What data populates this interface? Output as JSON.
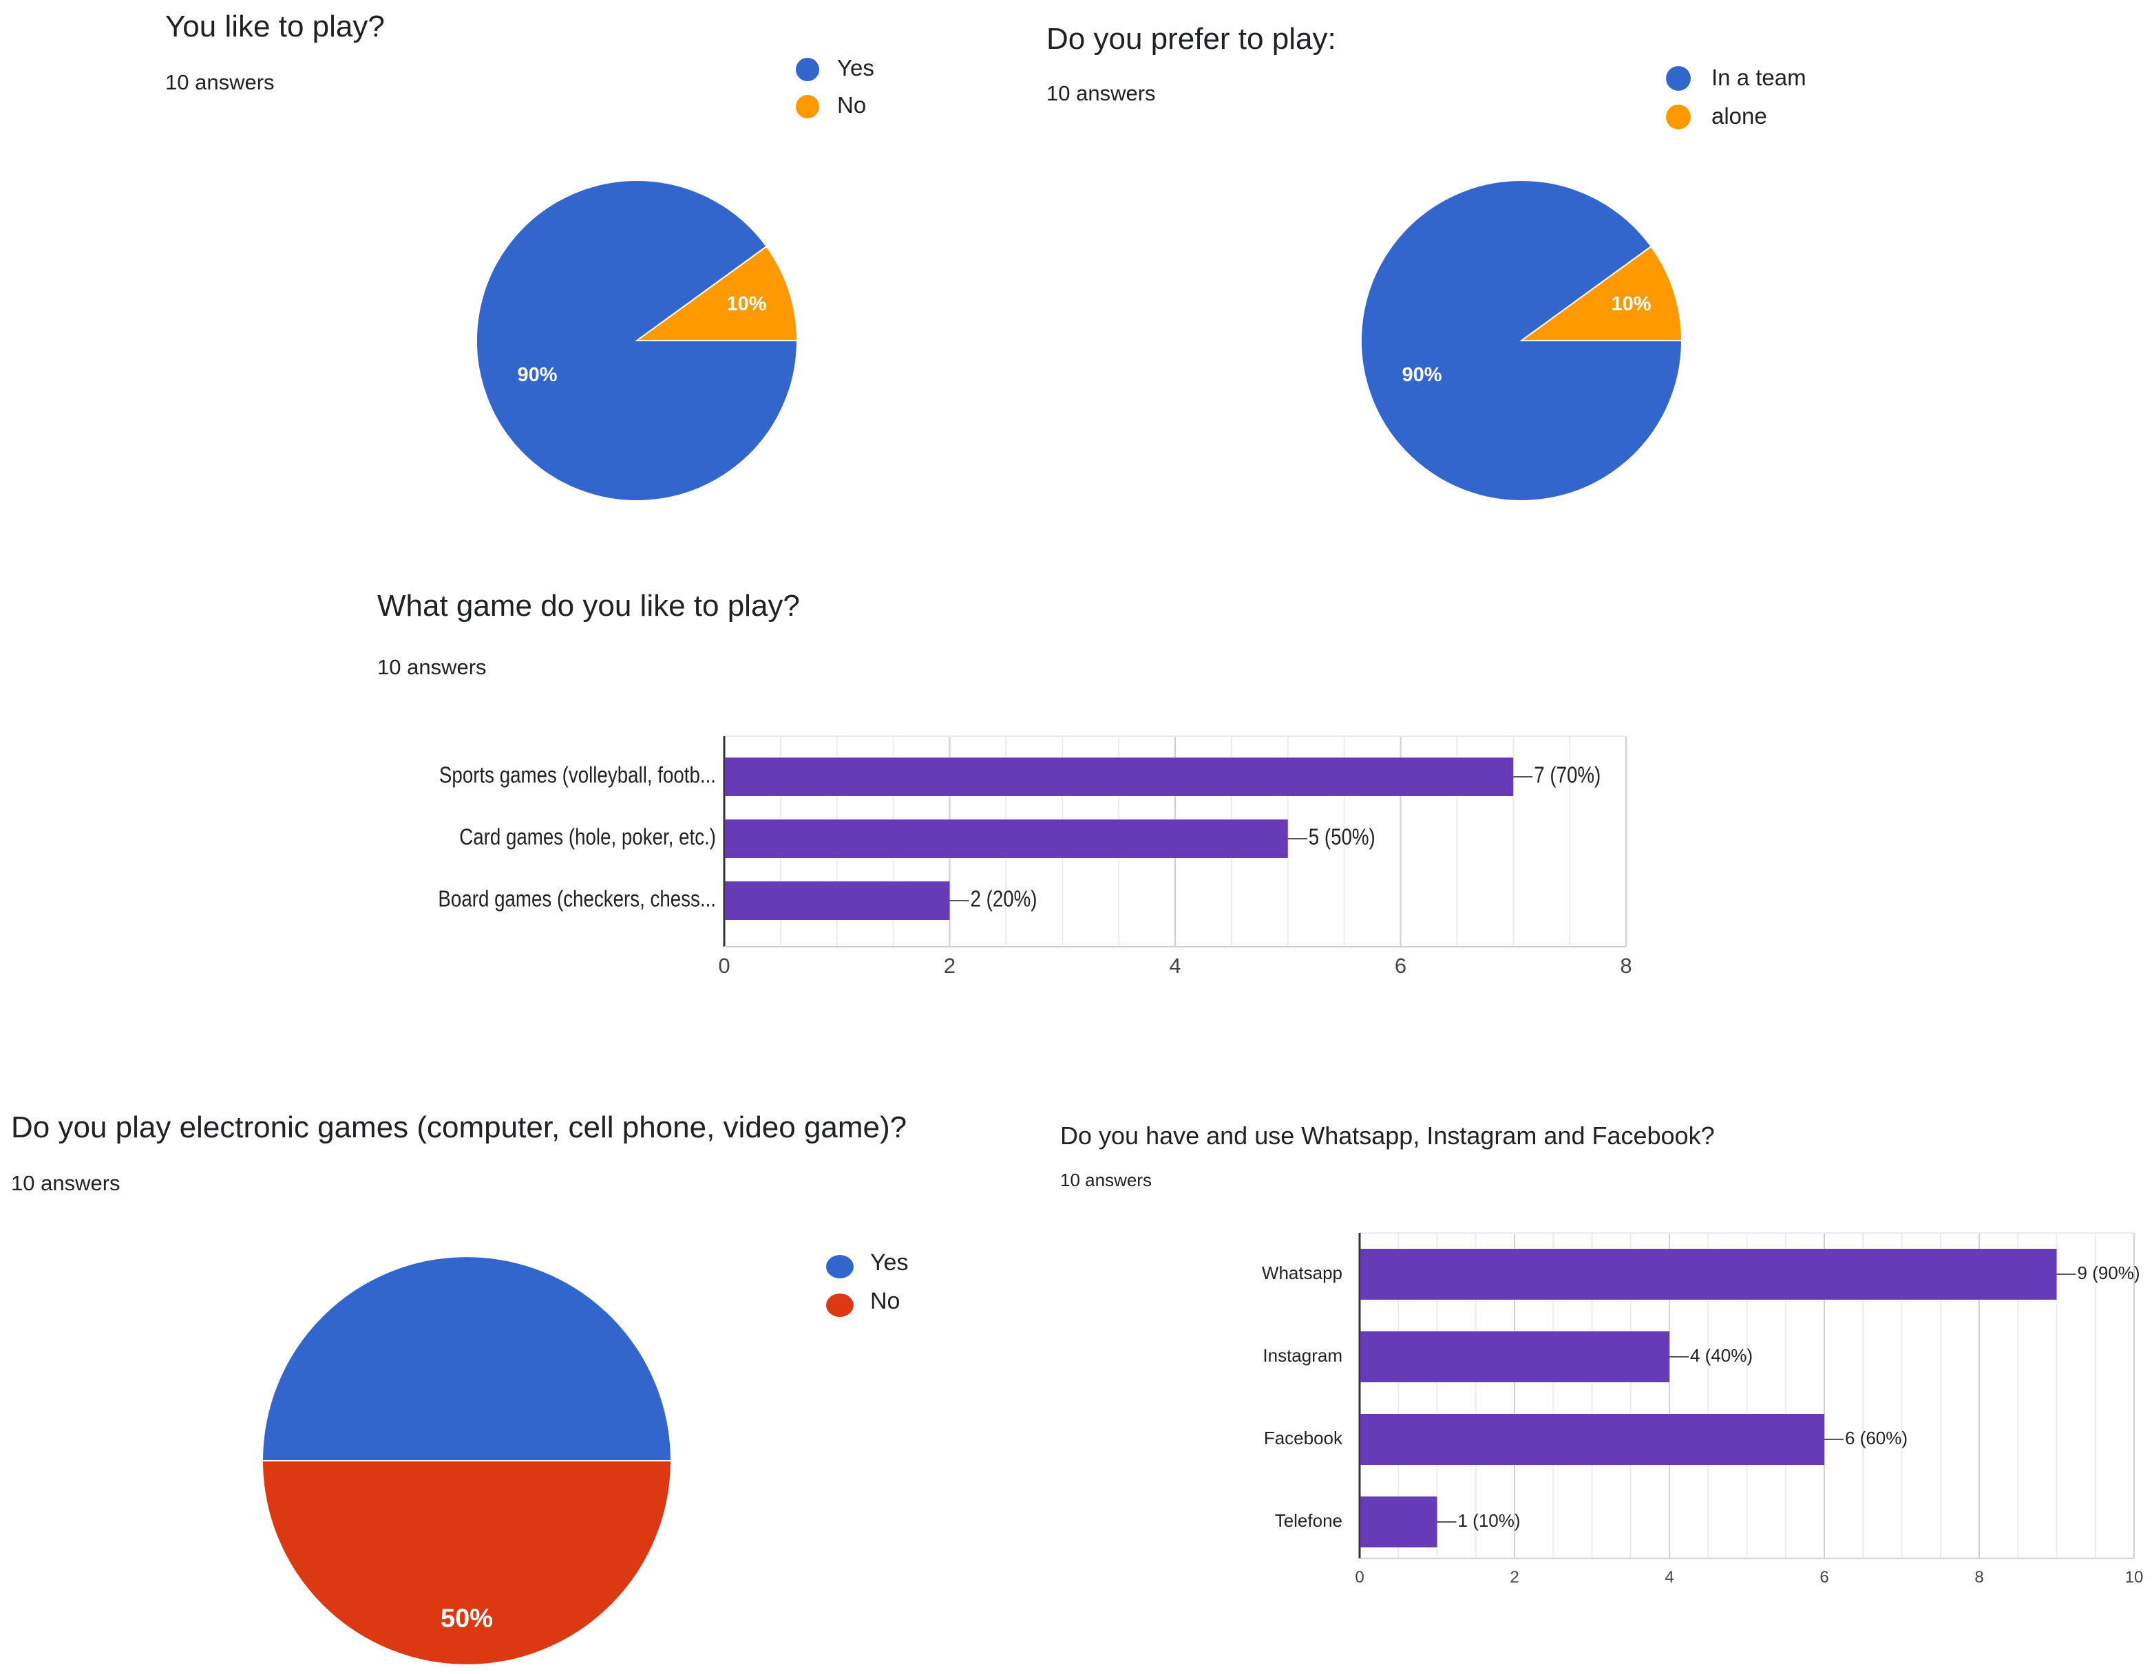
{
  "chart_data": [
    {
      "type": "pie",
      "title": "You like to play?",
      "subtitle": "10 answers",
      "categories": [
        "Yes",
        "No"
      ],
      "values": [
        90,
        10
      ],
      "labels": [
        "90%",
        "10%"
      ],
      "colors": [
        "#3366cc",
        "#ff9900"
      ],
      "legend": "top-right"
    },
    {
      "type": "pie",
      "title": "Do you prefer to play:",
      "subtitle": "10 answers",
      "categories": [
        "In a team",
        "alone"
      ],
      "values": [
        90,
        10
      ],
      "labels": [
        "90%",
        "10%"
      ],
      "colors": [
        "#3366cc",
        "#ff9900"
      ],
      "legend": "top-right"
    },
    {
      "type": "bar",
      "orientation": "horizontal",
      "title": "What game do you like to play?",
      "subtitle": "10 answers",
      "categories": [
        "Sports games (volleyball, footb...",
        "Card games (hole, poker, etc.)",
        "Board games (checkers, chess..."
      ],
      "values": [
        7,
        5,
        2
      ],
      "data_labels": [
        "7 (70%)",
        "5 (50%)",
        "2 (20%)"
      ],
      "xlim": [
        0,
        8
      ],
      "xticks": [
        "0",
        "2",
        "4",
        "6",
        "8"
      ],
      "color": "#673ab7",
      "grid": true
    },
    {
      "type": "pie",
      "title": "Do you play electronic games (computer, cell phone, video game)?",
      "subtitle": "10 answers",
      "categories": [
        "Yes",
        "No"
      ],
      "values": [
        50,
        50
      ],
      "labels": [
        "50%",
        "50%"
      ],
      "colors": [
        "#3366cc",
        "#dc3912"
      ],
      "legend": "top-right"
    },
    {
      "type": "bar",
      "orientation": "horizontal",
      "title": "Do you have and use Whatsapp, Instagram and Facebook?",
      "subtitle": "10 answers",
      "categories": [
        "Whatsapp",
        "Instagram",
        "Facebook",
        "Telefone"
      ],
      "values": [
        9,
        4,
        6,
        1
      ],
      "data_labels": [
        "9 (90%)",
        "4 (40%)",
        "6 (60%)",
        "1 (10%)"
      ],
      "xlim": [
        0,
        10
      ],
      "xticks": [
        "0",
        "2",
        "4",
        "6",
        "8",
        "10"
      ],
      "color": "#673ab7",
      "grid": true
    }
  ]
}
